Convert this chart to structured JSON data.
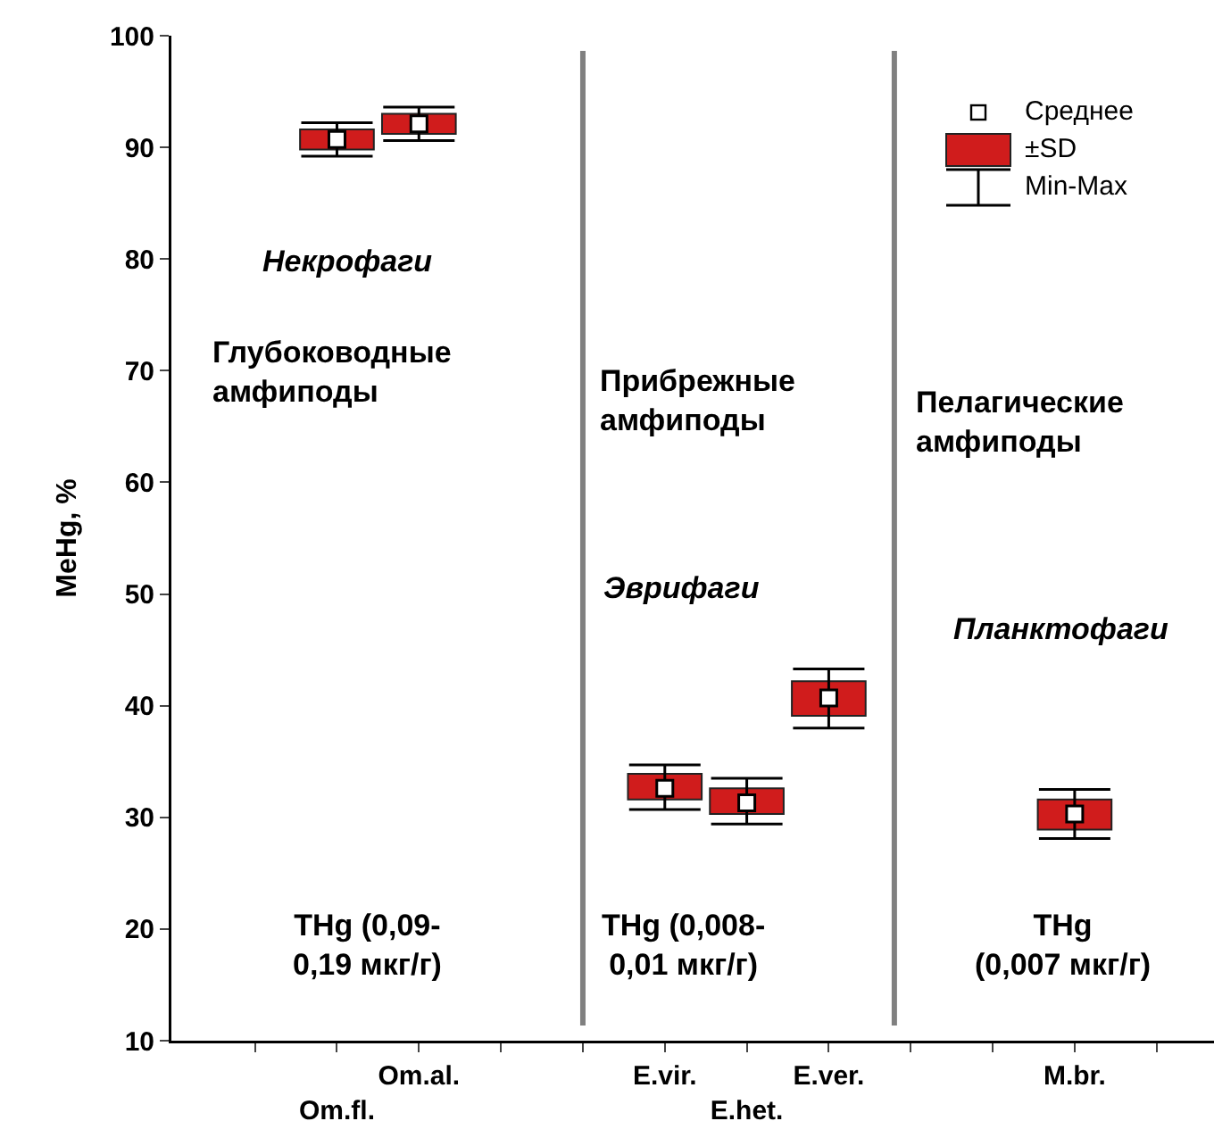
{
  "chart_data": {
    "type": "box",
    "ylabel": "MeHg, %",
    "ylim": [
      10,
      100
    ],
    "yticks": [
      10,
      20,
      30,
      40,
      50,
      60,
      70,
      80,
      90,
      100
    ],
    "legend": "top right",
    "categories": [
      null,
      "Om.fl.",
      "Om.al.",
      null,
      null,
      "E.vir.",
      "E.het.",
      "E.ver.",
      null,
      null,
      "M.br.",
      null
    ],
    "series": [
      {
        "name": "±SD",
        "type": "bar",
        "color": "#d01c1c",
        "base": [
          null,
          89.8,
          91.2,
          null,
          null,
          31.6,
          30.3,
          39.1,
          null,
          null,
          28.9,
          null
        ],
        "values": [
          null,
          1.8,
          1.8,
          null,
          null,
          2.3,
          2.3,
          3.1,
          null,
          null,
          2.7,
          null
        ]
      },
      {
        "name": "Среднее",
        "type": "scatter",
        "marker": "square",
        "color": "#ffffff",
        "values": [
          null,
          90.7,
          92.1,
          null,
          null,
          32.6,
          31.3,
          40.7,
          null,
          null,
          30.3,
          null
        ],
        "errors": [
          null,
          [
            89.2,
            92.2
          ],
          [
            90.6,
            93.6
          ],
          null,
          null,
          [
            30.7,
            34.7
          ],
          [
            29.4,
            33.5
          ],
          [
            38.0,
            43.3
          ],
          null,
          null,
          [
            28.1,
            32.5
          ],
          null
        ]
      }
    ],
    "annotations": [
      "Некрофаги",
      "Глубоководные\nамфиподы",
      "Прибрежные\nамфиподы",
      "Эврифаги",
      "Пелагические\nамфиподы",
      "Планктофаги",
      "THg (0,09-\n0,19 мкг/г)",
      "THg (0,008-\n0,01 мкг/г)",
      "THg\n(0,007 мкг/г)",
      "Min-Max"
    ]
  }
}
